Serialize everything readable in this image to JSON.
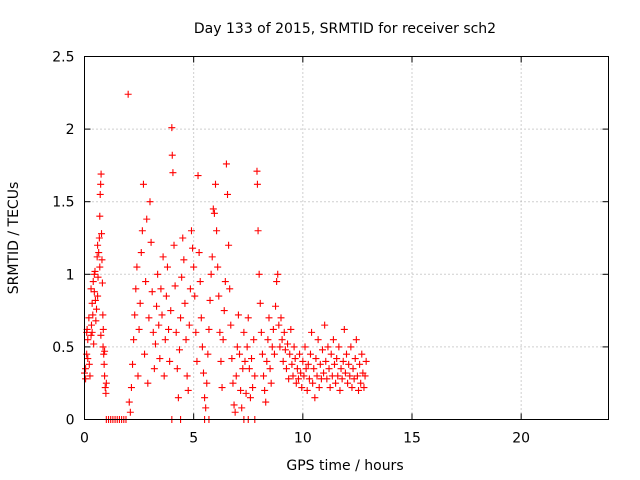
{
  "chart_data": {
    "type": "scatter",
    "title": "Day 133 of 2015, SRMTID for receiver sch2",
    "xlabel": "GPS time / hours",
    "ylabel": "SRMTID / TECUs",
    "xlim": [
      0,
      24
    ],
    "ylim": [
      0,
      2.5
    ],
    "x_ticks": [
      0,
      5,
      10,
      15,
      20
    ],
    "y_ticks": [
      0,
      0.5,
      1,
      1.5,
      2,
      2.5
    ],
    "x_tick_labels": [
      "0",
      "5",
      "10",
      "15",
      "20"
    ],
    "y_tick_labels": [
      "0",
      "0.5",
      "1",
      "1.5",
      "2",
      "2.5"
    ],
    "grid": true,
    "marker": "+",
    "series": [
      {
        "name": "SRMTID",
        "color": "#ff0000",
        "points": [
          [
            0.0,
            0.32
          ],
          [
            0.05,
            0.28
          ],
          [
            0.1,
            0.45
          ],
          [
            0.12,
            0.62
          ],
          [
            0.15,
            0.55
          ],
          [
            0.2,
            0.7
          ],
          [
            0.22,
            0.38
          ],
          [
            0.25,
            0.3
          ],
          [
            0.3,
            0.58
          ],
          [
            0.32,
            0.65
          ],
          [
            0.35,
            0.8
          ],
          [
            0.38,
            0.72
          ],
          [
            0.4,
            0.95
          ],
          [
            0.42,
            0.52
          ],
          [
            0.45,
            0.88
          ],
          [
            0.48,
            1.02
          ],
          [
            0.5,
            0.82
          ],
          [
            0.52,
            0.68
          ],
          [
            0.55,
            0.76
          ],
          [
            0.58,
            1.12
          ],
          [
            0.6,
            1.2
          ],
          [
            0.62,
            0.98
          ],
          [
            0.65,
            1.15
          ],
          [
            0.68,
            1.25
          ],
          [
            0.7,
            1.4
          ],
          [
            0.72,
            1.55
          ],
          [
            0.74,
            1.62
          ],
          [
            0.76,
            1.69
          ],
          [
            0.78,
            1.28
          ],
          [
            0.8,
            1.1
          ],
          [
            0.82,
            0.94
          ],
          [
            0.84,
            0.72
          ],
          [
            0.86,
            0.62
          ],
          [
            0.88,
            0.45
          ],
          [
            0.9,
            0.38
          ],
          [
            0.92,
            0.47
          ],
          [
            0.95,
            0.22
          ],
          [
            0.98,
            0.18
          ],
          [
            1.0,
            0.25
          ],
          [
            0.1,
            0.6
          ],
          [
            0.15,
            0.42
          ],
          [
            0.05,
            0.35
          ],
          [
            0.3,
            0.9
          ],
          [
            0.45,
            1.0
          ],
          [
            0.6,
            0.85
          ],
          [
            0.7,
            1.05
          ],
          [
            0.75,
            0.58
          ],
          [
            0.85,
            0.5
          ],
          [
            0.92,
            0.3
          ],
          [
            0.35,
            0.6
          ],
          [
            1.0,
            0.0
          ],
          [
            1.1,
            0.0
          ],
          [
            1.2,
            0.0
          ],
          [
            1.3,
            0.0
          ],
          [
            1.4,
            0.0
          ],
          [
            1.5,
            0.0
          ],
          [
            1.6,
            0.0
          ],
          [
            1.7,
            0.0
          ],
          [
            1.8,
            0.0
          ],
          [
            1.9,
            0.0
          ],
          [
            2.0,
            2.24
          ],
          [
            2.05,
            0.12
          ],
          [
            2.1,
            0.05
          ],
          [
            2.15,
            0.22
          ],
          [
            2.2,
            0.38
          ],
          [
            2.25,
            0.55
          ],
          [
            2.3,
            0.72
          ],
          [
            2.35,
            0.9
          ],
          [
            2.4,
            1.05
          ],
          [
            2.45,
            0.3
          ],
          [
            2.5,
            0.62
          ],
          [
            2.55,
            0.8
          ],
          [
            2.6,
            1.15
          ],
          [
            2.65,
            1.3
          ],
          [
            2.7,
            1.62
          ],
          [
            2.75,
            0.45
          ],
          [
            2.8,
            0.95
          ],
          [
            2.85,
            1.38
          ],
          [
            2.9,
            0.25
          ],
          [
            2.95,
            0.7
          ],
          [
            3.0,
            1.5
          ],
          [
            3.05,
            1.22
          ],
          [
            3.1,
            0.88
          ],
          [
            3.15,
            0.6
          ],
          [
            3.2,
            0.35
          ],
          [
            3.25,
            0.52
          ],
          [
            3.3,
            0.78
          ],
          [
            3.35,
            1.0
          ],
          [
            3.4,
            0.65
          ],
          [
            3.45,
            0.42
          ],
          [
            3.5,
            0.9
          ],
          [
            3.55,
            0.72
          ],
          [
            3.6,
            1.12
          ],
          [
            3.65,
            0.3
          ],
          [
            3.7,
            0.55
          ],
          [
            3.75,
            0.85
          ],
          [
            3.8,
            1.05
          ],
          [
            3.85,
            0.62
          ],
          [
            3.9,
            0.4
          ],
          [
            3.95,
            0.75
          ],
          [
            4.0,
            2.01
          ],
          [
            4.02,
            1.82
          ],
          [
            4.05,
            1.7
          ],
          [
            4.1,
            1.2
          ],
          [
            4.15,
            0.92
          ],
          [
            4.2,
            0.6
          ],
          [
            4.25,
            0.35
          ],
          [
            4.3,
            0.15
          ],
          [
            4.35,
            0.48
          ],
          [
            4.4,
            0.7
          ],
          [
            4.45,
            0.98
          ],
          [
            4.5,
            1.25
          ],
          [
            4.55,
            1.1
          ],
          [
            4.6,
            0.8
          ],
          [
            4.65,
            0.55
          ],
          [
            4.7,
            0.3
          ],
          [
            4.75,
            0.2
          ],
          [
            4.8,
            0.65
          ],
          [
            4.85,
            0.9
          ],
          [
            4.9,
            1.3
          ],
          [
            4.95,
            1.18
          ],
          [
            5.0,
            1.05
          ],
          [
            5.05,
            0.85
          ],
          [
            5.1,
            0.6
          ],
          [
            5.15,
            0.4
          ],
          [
            5.2,
            1.68
          ],
          [
            5.25,
            1.15
          ],
          [
            5.3,
            0.95
          ],
          [
            5.35,
            0.7
          ],
          [
            5.4,
            0.5
          ],
          [
            5.45,
            0.32
          ],
          [
            5.5,
            0.15
          ],
          [
            5.55,
            0.08
          ],
          [
            5.6,
            0.25
          ],
          [
            5.65,
            0.45
          ],
          [
            5.7,
            0.62
          ],
          [
            5.75,
            0.82
          ],
          [
            5.8,
            1.0
          ],
          [
            5.85,
            1.12
          ],
          [
            5.9,
            1.45
          ],
          [
            5.95,
            1.42
          ],
          [
            6.0,
            1.62
          ],
          [
            6.05,
            1.3
          ],
          [
            6.1,
            1.05
          ],
          [
            6.15,
            0.85
          ],
          [
            6.2,
            0.6
          ],
          [
            6.25,
            0.4
          ],
          [
            6.3,
            0.22
          ],
          [
            6.35,
            0.55
          ],
          [
            6.4,
            0.75
          ],
          [
            6.45,
            0.95
          ],
          [
            6.5,
            1.76
          ],
          [
            6.55,
            1.55
          ],
          [
            6.6,
            1.2
          ],
          [
            6.65,
            0.9
          ],
          [
            6.7,
            0.65
          ],
          [
            6.75,
            0.42
          ],
          [
            6.8,
            0.25
          ],
          [
            6.85,
            0.1
          ],
          [
            6.9,
            0.05
          ],
          [
            6.95,
            0.3
          ],
          [
            7.0,
            0.5
          ],
          [
            7.05,
            0.72
          ],
          [
            7.1,
            0.45
          ],
          [
            7.15,
            0.2
          ],
          [
            7.2,
            0.08
          ],
          [
            7.25,
            0.35
          ],
          [
            7.3,
            0.6
          ],
          [
            7.35,
            0.4
          ],
          [
            7.4,
            0.18
          ],
          [
            7.45,
            0.5
          ],
          [
            7.5,
            0.7
          ],
          [
            7.55,
            0.35
          ],
          [
            7.6,
            0.15
          ],
          [
            7.65,
            0.42
          ],
          [
            7.7,
            0.22
          ],
          [
            7.75,
            0.55
          ],
          [
            7.8,
            0.3
          ],
          [
            7.9,
            1.71
          ],
          [
            7.92,
            1.62
          ],
          [
            7.95,
            1.3
          ],
          [
            8.0,
            1.0
          ],
          [
            8.05,
            0.8
          ],
          [
            8.1,
            0.6
          ],
          [
            8.15,
            0.45
          ],
          [
            8.2,
            0.3
          ],
          [
            8.25,
            0.2
          ],
          [
            8.3,
            0.12
          ],
          [
            8.35,
            0.4
          ],
          [
            8.4,
            0.55
          ],
          [
            8.45,
            0.7
          ],
          [
            8.5,
            0.35
          ],
          [
            8.55,
            0.25
          ],
          [
            8.6,
            0.5
          ],
          [
            8.65,
            0.62
          ],
          [
            8.7,
            0.45
          ],
          [
            8.75,
            0.78
          ],
          [
            8.8,
            0.95
          ],
          [
            8.85,
            1.0
          ],
          [
            8.9,
            0.65
          ],
          [
            8.95,
            0.5
          ],
          [
            9.0,
            0.7
          ],
          [
            9.05,
            0.55
          ],
          [
            9.1,
            0.4
          ],
          [
            9.15,
            0.6
          ],
          [
            9.2,
            0.48
          ],
          [
            9.25,
            0.35
          ],
          [
            9.3,
            0.52
          ],
          [
            9.35,
            0.28
          ],
          [
            9.4,
            0.45
          ],
          [
            9.45,
            0.62
          ],
          [
            9.5,
            0.38
          ],
          [
            9.55,
            0.3
          ],
          [
            9.6,
            0.5
          ],
          [
            9.65,
            0.42
          ],
          [
            9.7,
            0.25
          ],
          [
            9.75,
            0.35
          ],
          [
            9.8,
            0.28
          ],
          [
            9.85,
            0.45
          ],
          [
            9.9,
            0.32
          ],
          [
            9.95,
            0.22
          ],
          [
            10.0,
            0.4
          ],
          [
            10.05,
            0.3
          ],
          [
            10.1,
            0.5
          ],
          [
            10.15,
            0.35
          ],
          [
            10.2,
            0.2
          ],
          [
            10.25,
            0.38
          ],
          [
            10.3,
            0.28
          ],
          [
            10.35,
            0.45
          ],
          [
            10.4,
            0.6
          ],
          [
            10.45,
            0.25
          ],
          [
            10.5,
            0.35
          ],
          [
            10.55,
            0.15
          ],
          [
            10.6,
            0.42
          ],
          [
            10.65,
            0.3
          ],
          [
            10.7,
            0.55
          ],
          [
            10.75,
            0.22
          ],
          [
            10.8,
            0.38
          ],
          [
            10.85,
            0.28
          ],
          [
            10.9,
            0.48
          ],
          [
            10.95,
            0.32
          ],
          [
            11.0,
            0.65
          ],
          [
            11.05,
            0.4
          ],
          [
            11.1,
            0.28
          ],
          [
            11.15,
            0.5
          ],
          [
            11.2,
            0.35
          ],
          [
            11.25,
            0.22
          ],
          [
            11.3,
            0.45
          ],
          [
            11.35,
            0.3
          ],
          [
            11.4,
            0.55
          ],
          [
            11.45,
            0.38
          ],
          [
            11.5,
            0.25
          ],
          [
            11.55,
            0.42
          ],
          [
            11.6,
            0.3
          ],
          [
            11.65,
            0.5
          ],
          [
            11.7,
            0.2
          ],
          [
            11.75,
            0.35
          ],
          [
            11.8,
            0.28
          ],
          [
            11.85,
            0.4
          ],
          [
            11.9,
            0.62
          ],
          [
            11.95,
            0.32
          ],
          [
            12.0,
            0.45
          ],
          [
            12.05,
            0.25
          ],
          [
            12.1,
            0.38
          ],
          [
            12.15,
            0.3
          ],
          [
            12.2,
            0.5
          ],
          [
            12.25,
            0.22
          ],
          [
            12.3,
            0.35
          ],
          [
            12.35,
            0.28
          ],
          [
            12.4,
            0.42
          ],
          [
            12.45,
            0.55
          ],
          [
            12.5,
            0.3
          ],
          [
            12.55,
            0.2
          ],
          [
            12.6,
            0.38
          ],
          [
            12.65,
            0.25
          ],
          [
            12.7,
            0.45
          ],
          [
            12.75,
            0.32
          ],
          [
            12.8,
            0.22
          ],
          [
            12.85,
            0.3
          ],
          [
            12.9,
            0.4
          ],
          [
            4.0,
            0.0
          ],
          [
            4.4,
            0.0
          ],
          [
            5.5,
            0.0
          ],
          [
            5.7,
            0.0
          ],
          [
            7.3,
            0.0
          ],
          [
            7.5,
            0.0
          ],
          [
            7.8,
            0.0
          ]
        ]
      }
    ]
  }
}
